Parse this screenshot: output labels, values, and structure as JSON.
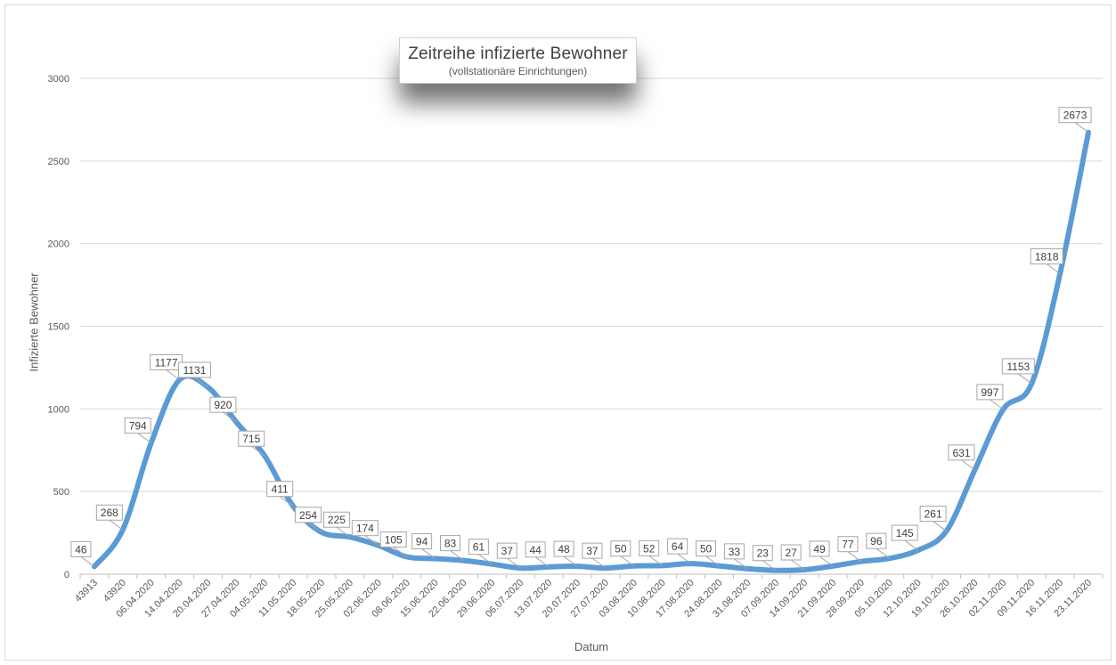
{
  "chart_data": {
    "type": "line",
    "title": "Zeitreihe infizierte Bewohner",
    "subtitle": "(vollstationäre Einrichtungen)",
    "xlabel": "Datum",
    "ylabel": "Infizierte Bewohner",
    "ylim": [
      0,
      3000
    ],
    "yticks": [
      0,
      500,
      1000,
      1500,
      2000,
      2500,
      3000
    ],
    "grid": true,
    "color": "#5b9bd5",
    "categories": [
      "43913",
      "43920",
      "06.04.2020",
      "14.04.2020",
      "20.04.2020",
      "27.04.2020",
      "04.05.2020",
      "11.05.2020",
      "18.05.2020",
      "25.05.2020",
      "02.06.2020",
      "08.06.2020",
      "15.06.2020",
      "22.06.2020",
      "29.06.2020",
      "06.07.2020",
      "13.07.2020",
      "20.07.2020",
      "27.07.2020",
      "03.08.2020",
      "10.08.2020",
      "17.08.2020",
      "24.08.2020",
      "31.08.2020",
      "07.09.2020",
      "14.09.2020",
      "21.09.2020",
      "28.09.2020",
      "05.10.2020",
      "12.10.2020",
      "19.10.2020",
      "26.10.2020",
      "02.11.2020",
      "09.11.2020",
      "16.11.2020",
      "23.11.2020"
    ],
    "series": [
      {
        "values": [
          46,
          268,
          794,
          1177,
          1131,
          920,
          715,
          411,
          254,
          225,
          174,
          105,
          94,
          83,
          61,
          37,
          44,
          48,
          37,
          50,
          52,
          64,
          50,
          33,
          23,
          27,
          49,
          77,
          96,
          145,
          261,
          631,
          997,
          1153,
          1818,
          2673
        ]
      }
    ]
  }
}
